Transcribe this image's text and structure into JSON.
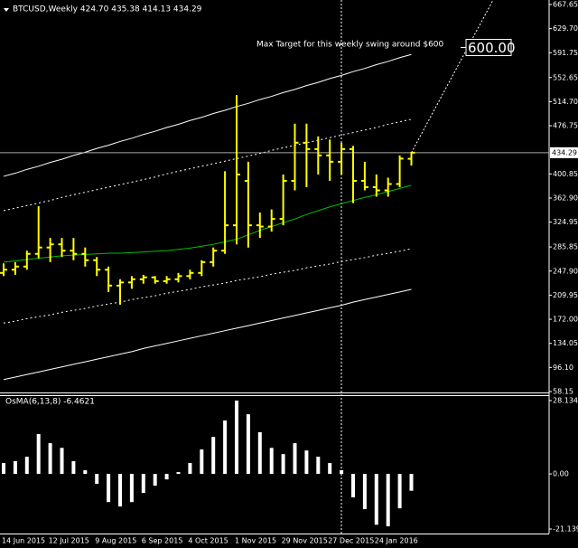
{
  "chart_data": [
    {
      "type": "ohlc",
      "header": "BTCUSD,Weekly  424.70 435.38 414.13 434.29",
      "color": "#ffff00",
      "open": [
        245,
        250,
        255,
        275,
        285,
        290,
        280,
        275,
        265,
        250,
        225,
        230,
        235,
        238,
        232,
        235,
        240,
        245,
        262,
        280,
        320,
        390,
        320,
        318,
        330,
        390,
        450,
        440,
        430,
        420,
        440,
        390,
        380,
        375,
        385,
        424.7
      ],
      "high": [
        260,
        262,
        280,
        350,
        300,
        300,
        300,
        285,
        270,
        255,
        235,
        240,
        242,
        240,
        240,
        245,
        250,
        265,
        285,
        405,
        525,
        420,
        340,
        345,
        400,
        480,
        480,
        460,
        455,
        450,
        445,
        420,
        400,
        395,
        430,
        435.38
      ],
      "low": [
        240,
        242,
        250,
        268,
        262,
        270,
        265,
        255,
        240,
        215,
        195,
        220,
        228,
        228,
        228,
        230,
        235,
        240,
        255,
        275,
        290,
        285,
        300,
        310,
        320,
        375,
        380,
        400,
        390,
        400,
        355,
        375,
        365,
        365,
        380,
        414.13
      ],
      "close": [
        250,
        255,
        275,
        285,
        290,
        280,
        275,
        265,
        250,
        225,
        230,
        235,
        238,
        232,
        235,
        240,
        245,
        262,
        280,
        320,
        400,
        320,
        318,
        330,
        390,
        450,
        440,
        430,
        420,
        440,
        390,
        380,
        375,
        385,
        425,
        434.29
      ],
      "lines": [
        {
          "color": "#ffffff",
          "dash": false,
          "values": [
            397,
            402,
            408,
            413,
            419,
            424,
            430,
            435,
            441,
            446,
            452,
            457,
            463,
            468,
            474,
            479,
            485,
            490,
            496,
            501,
            507,
            512,
            518,
            523,
            529,
            534,
            540,
            545,
            551,
            556,
            562,
            567,
            573,
            578,
            584,
            589
          ]
        },
        {
          "color": "#ffffff",
          "dash": true,
          "values": [
            343,
            347,
            351,
            355,
            359,
            364,
            368,
            372,
            376,
            380,
            384,
            388,
            392,
            396,
            401,
            405,
            409,
            413,
            417,
            421,
            425,
            429,
            433,
            438,
            442,
            446,
            450,
            454,
            458,
            462,
            466,
            470,
            474,
            479,
            483,
            487
          ]
        },
        {
          "color": "#00c000",
          "dash": false,
          "values": [
            262,
            264,
            266,
            268,
            270,
            272,
            273,
            274,
            275,
            276,
            276,
            277,
            278,
            279,
            280,
            282,
            284,
            287,
            290,
            294,
            298,
            305,
            312,
            318,
            324,
            330,
            337,
            343,
            349,
            354,
            359,
            364,
            368,
            373,
            378,
            383
          ]
        },
        {
          "color": "#ffffff",
          "dash": true,
          "values": [
            166,
            169,
            173,
            176,
            179,
            183,
            186,
            189,
            193,
            196,
            199,
            203,
            206,
            209,
            213,
            216,
            219,
            223,
            226,
            229,
            233,
            236,
            239,
            243,
            246,
            249,
            253,
            256,
            259,
            263,
            266,
            269,
            273,
            276,
            279,
            283
          ]
        },
        {
          "color": "#ffffff",
          "dash": false,
          "values": [
            77,
            81,
            85,
            89,
            93,
            97,
            101,
            105,
            109,
            113,
            117,
            121,
            126,
            130,
            134,
            138,
            142,
            146,
            150,
            154,
            158,
            162,
            166,
            170,
            174,
            178,
            182,
            186,
            190,
            194,
            199,
            203,
            207,
            211,
            215,
            219
          ]
        }
      ],
      "current_price": 434.29,
      "annotation": "Max Target for this weekly swing around $600",
      "target": {
        "value": 600,
        "label": "600.00"
      },
      "ylim": [
        58.15,
        667.65
      ],
      "yticks": [
        667.65,
        {
          "value": 629.7,
          "label": "629.70"
        },
        591.75,
        552.65,
        {
          "value": 514.7,
          "label": "514.70"
        },
        476.75,
        400.85,
        {
          "value": 362.9,
          "label": "362.90"
        },
        324.95,
        285.85,
        {
          "value": 247.9,
          "label": "247.90"
        },
        209.95,
        {
          "value": 172,
          "label": "172.00"
        },
        134.05,
        {
          "value": 96.1,
          "label": "96.10"
        },
        58.15
      ]
    },
    {
      "type": "bar",
      "label": "OsMA(6,13,8) -6.4621",
      "color": "#ffffff",
      "categories": [
        "14 Jun 2015",
        null,
        null,
        null,
        "12 Jul 2015",
        null,
        null,
        null,
        "9 Aug 2015",
        null,
        null,
        null,
        "6 Sep 2015",
        null,
        null,
        null,
        "4 Oct 2015",
        null,
        null,
        null,
        "1 Nov 2015",
        null,
        null,
        null,
        "29 Nov 2015",
        null,
        null,
        null,
        "27 Dec 2015",
        null,
        null,
        null,
        "24 Jan 2016",
        null,
        null,
        null
      ],
      "values": [
        4.2,
        4.9,
        6.6,
        15.3,
        11.8,
        10,
        4.9,
        1.4,
        -3.8,
        -10.8,
        -12.5,
        -10.8,
        -7.3,
        -4.5,
        -2.1,
        0.7,
        4.2,
        9.4,
        14.2,
        20.5,
        28.1348,
        22.9,
        16,
        10,
        7.6,
        11.8,
        9,
        6.6,
        4.2,
        1.4,
        -9,
        -13.5,
        -19.5,
        -20.1,
        -13.2,
        -6.4621
      ],
      "ylim": [
        -21.1391,
        28.1348
      ],
      "yticks": [
        28.1348,
        {
          "value": 0,
          "label": "0.00"
        },
        -21.1391
      ]
    }
  ]
}
